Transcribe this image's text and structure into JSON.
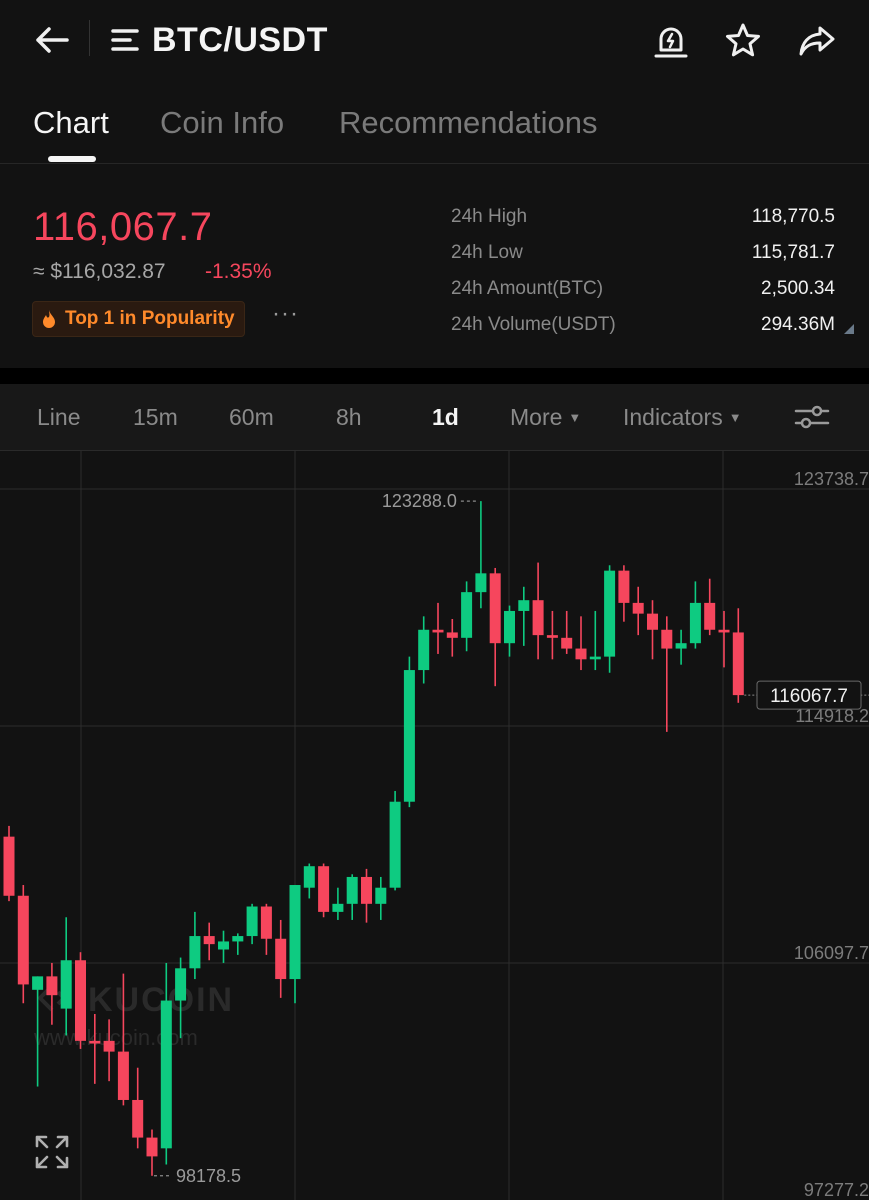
{
  "header": {
    "title": "BTC/USDT",
    "icons": [
      "back-arrow-icon",
      "menu-icon",
      "price-alert-icon",
      "star-icon",
      "share-icon"
    ]
  },
  "tabs": [
    {
      "label": "Chart",
      "active": true
    },
    {
      "label": "Coin Info",
      "active": false
    },
    {
      "label": "Recommendations",
      "active": false
    }
  ],
  "price": {
    "last": "116,067.7",
    "fiat": "≈ $116,032.87",
    "change": "-1.35%",
    "badge": "Top 1 in Popularity",
    "more": "···"
  },
  "stats": [
    {
      "label": "24h High",
      "value": "118,770.5"
    },
    {
      "label": "24h Low",
      "value": "115,781.7"
    },
    {
      "label": "24h Amount(BTC)",
      "value": "2,500.34"
    },
    {
      "label": "24h Volume(USDT)",
      "value": "294.36M"
    }
  ],
  "intervals": {
    "line": "Line",
    "m15": "15m",
    "m60": "60m",
    "h8": "8h",
    "d1": "1d",
    "more": "More",
    "indicators": "Indicators",
    "active": "1d"
  },
  "colors": {
    "up": "#0ecb81",
    "down": "#f6465d",
    "background": "#121212",
    "badge_text": "#ff8a2b"
  },
  "chart_data": {
    "type": "candlestick",
    "interval": "1d",
    "y_ticks": [
      "123738.7",
      "114918.2",
      "106097.7",
      "97277.2"
    ],
    "y_range": [
      97277.2,
      123738.7
    ],
    "grid": true,
    "high_label": "123288.0",
    "low_label": "98178.5",
    "last_price_label": "116067.7",
    "last_price": 116067.7,
    "watermark_brand": "KUCOIN",
    "watermark_url": "www.kucoin.com",
    "candles": [
      {
        "o": 110800,
        "h": 111200,
        "l": 108400,
        "c": 108600
      },
      {
        "o": 108600,
        "h": 109000,
        "l": 104600,
        "c": 105300
      },
      {
        "o": 105100,
        "h": 105600,
        "l": 101500,
        "c": 105600
      },
      {
        "o": 105600,
        "h": 106100,
        "l": 103800,
        "c": 104900
      },
      {
        "o": 104400,
        "h": 107800,
        "l": 103400,
        "c": 106200
      },
      {
        "o": 106200,
        "h": 106500,
        "l": 102900,
        "c": 103200
      },
      {
        "o": 103200,
        "h": 104200,
        "l": 101600,
        "c": 103100
      },
      {
        "o": 103200,
        "h": 104000,
        "l": 101700,
        "c": 102800
      },
      {
        "o": 102800,
        "h": 105700,
        "l": 100800,
        "c": 101000
      },
      {
        "o": 101000,
        "h": 102200,
        "l": 99200,
        "c": 99600
      },
      {
        "o": 99600,
        "h": 99900,
        "l": 98178.5,
        "c": 98900
      },
      {
        "o": 99200,
        "h": 106100,
        "l": 98600,
        "c": 104700
      },
      {
        "o": 104700,
        "h": 106300,
        "l": 103300,
        "c": 105900
      },
      {
        "o": 105900,
        "h": 108000,
        "l": 105500,
        "c": 107100
      },
      {
        "o": 107100,
        "h": 107600,
        "l": 106200,
        "c": 106800
      },
      {
        "o": 106600,
        "h": 107300,
        "l": 106100,
        "c": 106900
      },
      {
        "o": 106900,
        "h": 107200,
        "l": 106400,
        "c": 107100
      },
      {
        "o": 107100,
        "h": 108300,
        "l": 106800,
        "c": 108200
      },
      {
        "o": 108200,
        "h": 108300,
        "l": 106400,
        "c": 107000
      },
      {
        "o": 107000,
        "h": 107700,
        "l": 104800,
        "c": 105500
      },
      {
        "o": 105500,
        "h": 109000,
        "l": 104600,
        "c": 109000
      },
      {
        "o": 108900,
        "h": 109800,
        "l": 108500,
        "c": 109700
      },
      {
        "o": 109700,
        "h": 109800,
        "l": 107800,
        "c": 108000
      },
      {
        "o": 108000,
        "h": 108900,
        "l": 107700,
        "c": 108300
      },
      {
        "o": 108300,
        "h": 109400,
        "l": 107700,
        "c": 109300
      },
      {
        "o": 109300,
        "h": 109600,
        "l": 107600,
        "c": 108300
      },
      {
        "o": 108300,
        "h": 109300,
        "l": 107700,
        "c": 108900
      },
      {
        "o": 108900,
        "h": 112500,
        "l": 108800,
        "c": 112100
      },
      {
        "o": 112100,
        "h": 117500,
        "l": 111900,
        "c": 117000
      },
      {
        "o": 117000,
        "h": 119000,
        "l": 116500,
        "c": 118500
      },
      {
        "o": 118500,
        "h": 119500,
        "l": 117600,
        "c": 118400
      },
      {
        "o": 118400,
        "h": 118900,
        "l": 117500,
        "c": 118200
      },
      {
        "o": 118200,
        "h": 120300,
        "l": 117700,
        "c": 119900
      },
      {
        "o": 119900,
        "h": 123288,
        "l": 119300,
        "c": 120600
      },
      {
        "o": 120600,
        "h": 120800,
        "l": 116400,
        "c": 118000
      },
      {
        "o": 118000,
        "h": 119400,
        "l": 117500,
        "c": 119200
      },
      {
        "o": 119200,
        "h": 120100,
        "l": 117900,
        "c": 119600
      },
      {
        "o": 119600,
        "h": 121000,
        "l": 117400,
        "c": 118300
      },
      {
        "o": 118300,
        "h": 119200,
        "l": 117400,
        "c": 118200
      },
      {
        "o": 118200,
        "h": 119200,
        "l": 117600,
        "c": 117800
      },
      {
        "o": 117800,
        "h": 119000,
        "l": 117000,
        "c": 117400
      },
      {
        "o": 117400,
        "h": 119200,
        "l": 117000,
        "c": 117500
      },
      {
        "o": 117500,
        "h": 120900,
        "l": 116900,
        "c": 120700
      },
      {
        "o": 120700,
        "h": 120900,
        "l": 118800,
        "c": 119500
      },
      {
        "o": 119500,
        "h": 120100,
        "l": 118300,
        "c": 119100
      },
      {
        "o": 119100,
        "h": 119600,
        "l": 117400,
        "c": 118500
      },
      {
        "o": 118500,
        "h": 119000,
        "l": 114700,
        "c": 117800
      },
      {
        "o": 117800,
        "h": 118500,
        "l": 117200,
        "c": 118000
      },
      {
        "o": 118000,
        "h": 120300,
        "l": 117800,
        "c": 119500
      },
      {
        "o": 119500,
        "h": 120400,
        "l": 118300,
        "c": 118500
      },
      {
        "o": 118500,
        "h": 119200,
        "l": 117100,
        "c": 118400
      },
      {
        "o": 118400,
        "h": 119300,
        "l": 115781.7,
        "c": 116067.7
      }
    ]
  }
}
